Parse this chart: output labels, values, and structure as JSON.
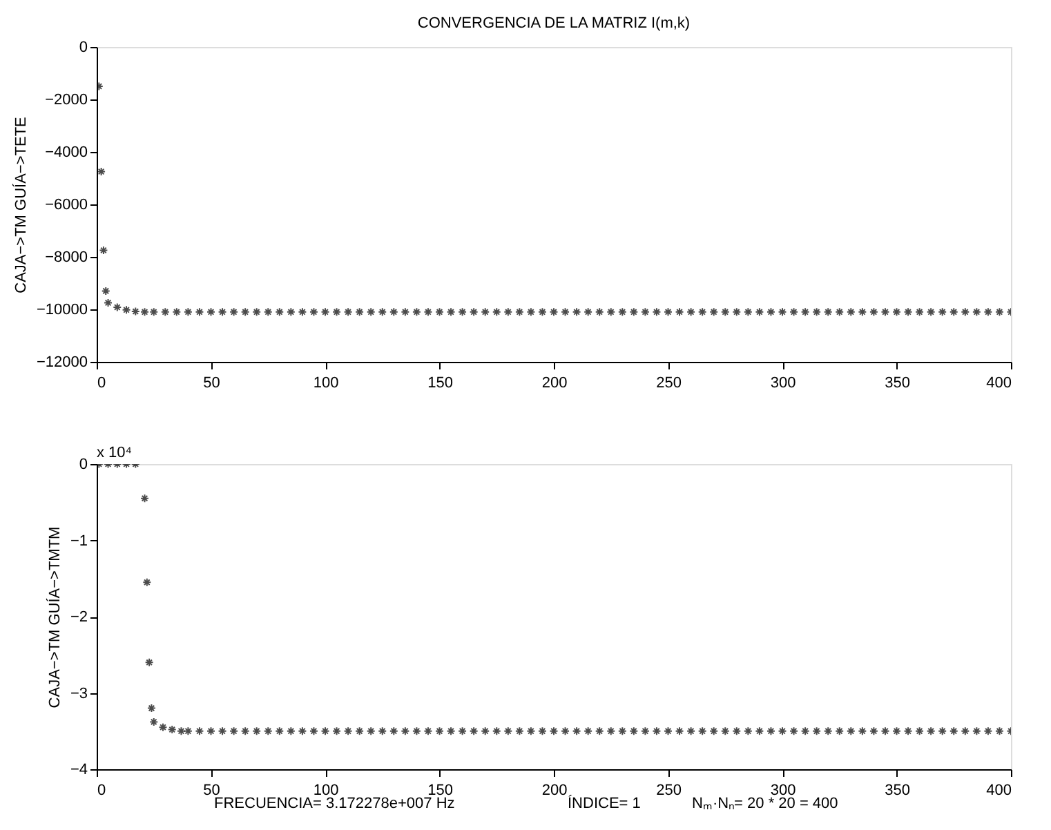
{
  "chart_data": [
    {
      "type": "scatter",
      "title": "CONVERGENCIA DE LA MATRIZ I(m,k)",
      "ylabel": "CAJA−>TM  GUÍA−>TETE",
      "marker": "cross",
      "grid": false,
      "legend": false,
      "x": [
        1,
        2,
        3,
        4,
        5,
        9,
        13,
        17,
        21,
        25,
        30,
        35,
        40,
        45,
        50,
        55,
        60,
        65,
        70,
        75,
        80,
        85,
        90,
        95,
        100,
        105,
        110,
        115,
        120,
        125,
        130,
        135,
        140,
        145,
        150,
        155,
        160,
        165,
        170,
        175,
        180,
        185,
        190,
        195,
        200,
        205,
        210,
        215,
        220,
        225,
        230,
        235,
        240,
        245,
        250,
        255,
        260,
        265,
        270,
        275,
        280,
        285,
        290,
        295,
        300,
        305,
        310,
        315,
        320,
        325,
        330,
        335,
        340,
        345,
        350,
        355,
        360,
        365,
        370,
        375,
        380,
        385,
        390,
        395,
        400
      ],
      "series": [
        {
          "color": "#000000",
          "values": [
            -1500,
            -4750,
            -7750,
            -9300,
            -9750,
            -9920,
            -10020,
            -10080,
            -10100,
            -10100,
            -10100,
            -10100,
            -10100,
            -10100,
            -10100,
            -10100,
            -10100,
            -10100,
            -10100,
            -10100,
            -10100,
            -10100,
            -10100,
            -10100,
            -10100,
            -10100,
            -10100,
            -10100,
            -10100,
            -10100,
            -10100,
            -10100,
            -10100,
            -10100,
            -10100,
            -10100,
            -10100,
            -10100,
            -10100,
            -10100,
            -10100,
            -10100,
            -10100,
            -10100,
            -10100,
            -10100,
            -10100,
            -10100,
            -10100,
            -10100,
            -10100,
            -10100,
            -10100,
            -10100,
            -10100,
            -10100,
            -10100,
            -10100,
            -10100,
            -10100,
            -10100,
            -10100,
            -10100,
            -10100,
            -10100,
            -10100,
            -10100,
            -10100,
            -10100,
            -10100,
            -10100,
            -10100,
            -10100,
            -10100,
            -10100,
            -10100,
            -10100,
            -10100,
            -10100,
            -10100,
            -10100,
            -10100,
            -10100,
            -10100,
            -10100
          ]
        }
      ],
      "xlim": [
        0,
        400
      ],
      "xticks": [
        0,
        50,
        100,
        150,
        200,
        250,
        300,
        350,
        400
      ],
      "ylim": [
        -12000,
        0
      ],
      "yticks": [
        -12000,
        -10000,
        -8000,
        -6000,
        -4000,
        -2000,
        0
      ]
    },
    {
      "type": "scatter",
      "ylabel": "CAJA−>TM  GUÍA−>TMTM",
      "marker": "cross",
      "grid": false,
      "legend": false,
      "annotations": [
        "x 10⁴",
        "FRECUENCIA= 3.172278e+007 Hz",
        "ÍNDICE= 1",
        "Nₘ·Nₙ= 20 * 20 = 400"
      ],
      "x": [
        1,
        5,
        9,
        13,
        17,
        21,
        22,
        23,
        24,
        25,
        29,
        33,
        37,
        40,
        45,
        50,
        55,
        60,
        65,
        70,
        75,
        80,
        85,
        90,
        95,
        100,
        105,
        110,
        115,
        120,
        125,
        130,
        135,
        140,
        145,
        150,
        155,
        160,
        165,
        170,
        175,
        180,
        185,
        190,
        195,
        200,
        205,
        210,
        215,
        220,
        225,
        230,
        235,
        240,
        245,
        250,
        255,
        260,
        265,
        270,
        275,
        280,
        285,
        290,
        295,
        300,
        305,
        310,
        315,
        320,
        325,
        330,
        335,
        340,
        345,
        350,
        355,
        360,
        365,
        370,
        375,
        380,
        385,
        390,
        395,
        400
      ],
      "series": [
        {
          "color": "#000000",
          "values": [
            0,
            0,
            0,
            0,
            0,
            -0.45,
            -1.55,
            -2.6,
            -3.2,
            -3.38,
            -3.45,
            -3.48,
            -3.5,
            -3.5,
            -3.5,
            -3.5,
            -3.5,
            -3.5,
            -3.5,
            -3.5,
            -3.5,
            -3.5,
            -3.5,
            -3.5,
            -3.5,
            -3.5,
            -3.5,
            -3.5,
            -3.5,
            -3.5,
            -3.5,
            -3.5,
            -3.5,
            -3.5,
            -3.5,
            -3.5,
            -3.5,
            -3.5,
            -3.5,
            -3.5,
            -3.5,
            -3.5,
            -3.5,
            -3.5,
            -3.5,
            -3.5,
            -3.5,
            -3.5,
            -3.5,
            -3.5,
            -3.5,
            -3.5,
            -3.5,
            -3.5,
            -3.5,
            -3.5,
            -3.5,
            -3.5,
            -3.5,
            -3.5,
            -3.5,
            -3.5,
            -3.5,
            -3.5,
            -3.5,
            -3.5,
            -3.5,
            -3.5,
            -3.5,
            -3.5,
            -3.5,
            -3.5,
            -3.5,
            -3.5,
            -3.5,
            -3.5,
            -3.5,
            -3.5,
            -3.5,
            -3.5,
            -3.5,
            -3.5,
            -3.5,
            -3.5,
            -3.5,
            -3.5
          ]
        }
      ],
      "xlim": [
        0,
        400
      ],
      "xticks": [
        0,
        50,
        100,
        150,
        200,
        250,
        300,
        350,
        400
      ],
      "ylim": [
        -4,
        0
      ],
      "yticks": [
        -4,
        -3,
        -2,
        -1,
        0
      ]
    }
  ]
}
